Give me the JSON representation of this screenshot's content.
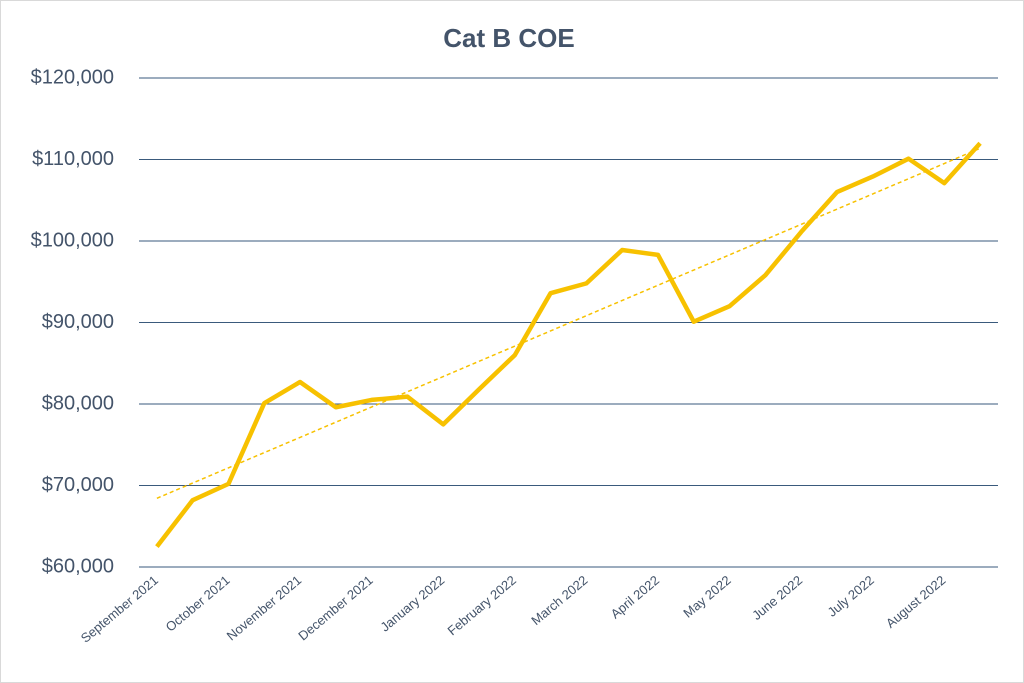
{
  "chart_data": {
    "type": "line",
    "title": "Cat B COE",
    "categories": [
      "September 2021",
      null,
      "October 2021",
      null,
      "November 2021",
      null,
      "December 2021",
      null,
      "January 2022",
      null,
      "February 2022",
      null,
      "March 2022",
      null,
      "April 2022",
      null,
      "May 2022",
      null,
      "June 2022",
      null,
      "July 2022",
      null,
      "August 2022",
      null
    ],
    "series": [
      {
        "name": "Cat B COE",
        "color": "#f7c100",
        "values": [
          62500,
          68200,
          70200,
          80100,
          82700,
          79600,
          80500,
          80900,
          77500,
          81800,
          86000,
          93600,
          94800,
          98900,
          98300,
          90100,
          92000,
          95800,
          101100,
          106000,
          107900,
          110100,
          107100,
          112000
        ]
      }
    ],
    "ylim": [
      60000,
      120000
    ],
    "yticks": [
      {
        "value": 60000,
        "label": "$60,000"
      },
      {
        "value": 70000,
        "label": "$70,000"
      },
      {
        "value": 80000,
        "label": "$80,000"
      },
      {
        "value": 90000,
        "label": "$90,000"
      },
      {
        "value": 100000,
        "label": "$100,000"
      },
      {
        "value": 110000,
        "label": "$110,000"
      },
      {
        "value": 120000,
        "label": "$120,000"
      }
    ],
    "grid": true,
    "trendline": true
  }
}
